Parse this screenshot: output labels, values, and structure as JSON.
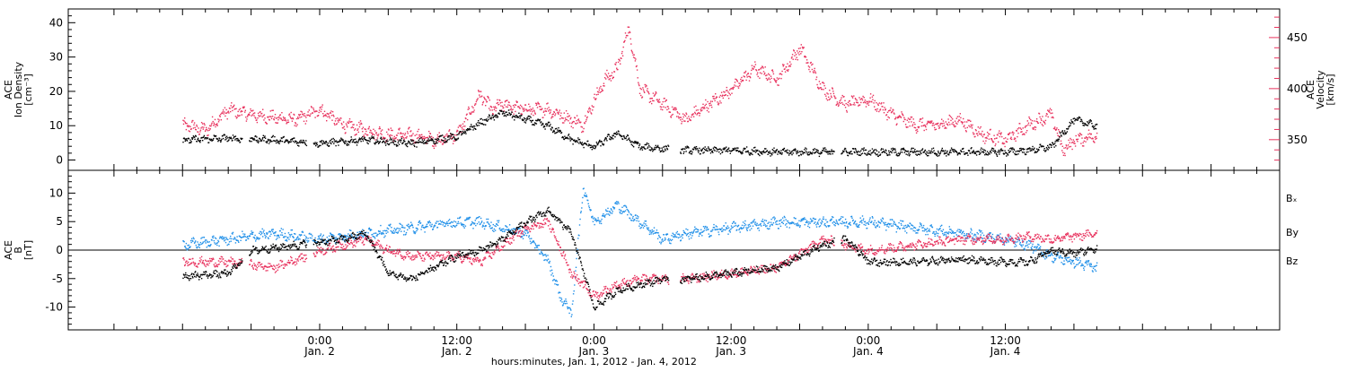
{
  "colors": {
    "black": "#000000",
    "pink": "#e8325e",
    "blue": "#1f8fe8"
  },
  "chart_data": [
    {
      "panel": "density-velocity",
      "type": "scatter",
      "ylabel": [
        "ACE",
        "Ion Density",
        "[cm⁻³]"
      ],
      "y2label": [
        "ACE",
        "Velocity",
        "[km/s]"
      ],
      "ylim": [
        -3,
        44
      ],
      "yticks": [
        0,
        10,
        20,
        30,
        40
      ],
      "y2lim": [
        320,
        478
      ],
      "y2ticks": [
        350,
        400,
        450
      ],
      "grid": false,
      "series": [
        {
          "color": "black",
          "axis": "left",
          "x": [
            -12,
            -8,
            -4,
            0,
            4,
            8,
            12,
            13,
            14,
            16,
            18,
            20,
            22,
            24,
            26,
            28,
            32,
            36,
            40,
            44,
            48,
            52,
            56,
            60,
            62,
            64,
            66,
            68
          ],
          "y": [
            6,
            6.5,
            6,
            5,
            6,
            5,
            7,
            9,
            11,
            14,
            12,
            10,
            6,
            4,
            8,
            4,
            3,
            3,
            2.5,
            2.5,
            2.5,
            2.5,
            2.5,
            2.5,
            3,
            4,
            12,
            10
          ]
        },
        {
          "color": "pink",
          "axis": "right",
          "x": [
            -12,
            -10,
            -8,
            -6,
            -4,
            -2,
            0,
            2,
            4,
            6,
            8,
            10,
            12,
            13,
            14,
            15,
            16,
            18,
            20,
            22,
            23,
            24,
            25,
            26,
            27,
            28,
            30,
            32,
            34,
            36,
            38,
            40,
            42,
            44,
            46,
            48,
            50,
            52,
            54,
            56,
            58,
            60,
            62,
            64,
            65,
            66,
            68
          ],
          "y": [
            365,
            360,
            380,
            375,
            372,
            370,
            380,
            365,
            360,
            355,
            355,
            350,
            355,
            375,
            395,
            380,
            385,
            380,
            380,
            370,
            365,
            390,
            410,
            420,
            460,
            400,
            385,
            370,
            385,
            400,
            420,
            410,
            440,
            400,
            385,
            390,
            375,
            365,
            365,
            370,
            355,
            350,
            365,
            375,
            340,
            350,
            355
          ]
        }
      ]
    },
    {
      "panel": "magnetic-field",
      "type": "scatter",
      "ylabel": [
        "ACE",
        "B",
        "[nT]"
      ],
      "ylim": [
        -14,
        14
      ],
      "yticks": [
        -10,
        -5,
        0,
        5,
        10
      ],
      "zero_line": true,
      "grid": false,
      "legend": {
        "placement": "right",
        "entries": [
          "Bₓ",
          "By",
          "Bz"
        ]
      },
      "series": [
        {
          "name": "Bₓ",
          "color": "black",
          "x": [
            -12,
            -8,
            -6,
            -2,
            2,
            4,
            6,
            8,
            10,
            12,
            14,
            16,
            18,
            20,
            22,
            24,
            26,
            28,
            30,
            32,
            36,
            40,
            44,
            46,
            48,
            52,
            56,
            60,
            62,
            64,
            66,
            68
          ],
          "y": [
            -4.5,
            -4,
            0,
            1,
            2,
            3,
            -4,
            -5,
            -3,
            -1,
            0,
            2,
            5,
            7,
            3,
            -10,
            -7,
            -6,
            -5,
            -5,
            -4,
            -3,
            1,
            2,
            -2,
            -2,
            -1.5,
            -2,
            -2,
            0,
            -0.5,
            0.5
          ]
        },
        {
          "name": "By",
          "color": "blue",
          "x": [
            -12,
            -8,
            -4,
            0,
            4,
            8,
            12,
            14,
            16,
            18,
            20,
            21,
            22,
            23,
            24,
            26,
            28,
            30,
            32,
            36,
            40,
            44,
            48,
            52,
            56,
            60,
            62,
            64,
            66,
            68
          ],
          "y": [
            1,
            2,
            3,
            2,
            3,
            4,
            5,
            5,
            4,
            3,
            -2,
            -8,
            -11,
            11,
            5,
            8,
            5,
            2,
            3,
            4,
            5,
            5,
            5,
            4,
            3,
            2,
            1,
            -1,
            -2,
            -3
          ]
        },
        {
          "name": "Bz",
          "color": "pink",
          "x": [
            -12,
            -8,
            -4,
            0,
            4,
            6,
            8,
            12,
            14,
            16,
            18,
            20,
            22,
            24,
            26,
            28,
            32,
            36,
            40,
            44,
            48,
            52,
            56,
            60,
            62,
            64,
            66,
            68
          ],
          "y": [
            -2,
            -2,
            -3,
            0,
            2,
            0,
            -1,
            -1,
            -2,
            1,
            4,
            5,
            -4,
            -8,
            -6,
            -5,
            -5,
            -4,
            -3,
            2,
            0,
            1,
            2,
            2,
            2.5,
            2,
            2.5,
            3
          ]
        }
      ]
    }
  ],
  "x_axis": {
    "ticks": [
      {
        "time": "0:00",
        "date": "Jan. 2",
        "hours": 0
      },
      {
        "time": "12:00",
        "date": "Jan. 2",
        "hours": 12
      },
      {
        "time": "0:00",
        "date": "Jan. 3",
        "hours": 24
      },
      {
        "time": "12:00",
        "date": "Jan. 3",
        "hours": 36
      },
      {
        "time": "0:00",
        "date": "Jan. 4",
        "hours": 48
      },
      {
        "time": "12:00",
        "date": "Jan. 4",
        "hours": 60
      }
    ],
    "title": "hours:minutes, Jan.  1, 2012 - Jan.  4, 2012"
  }
}
